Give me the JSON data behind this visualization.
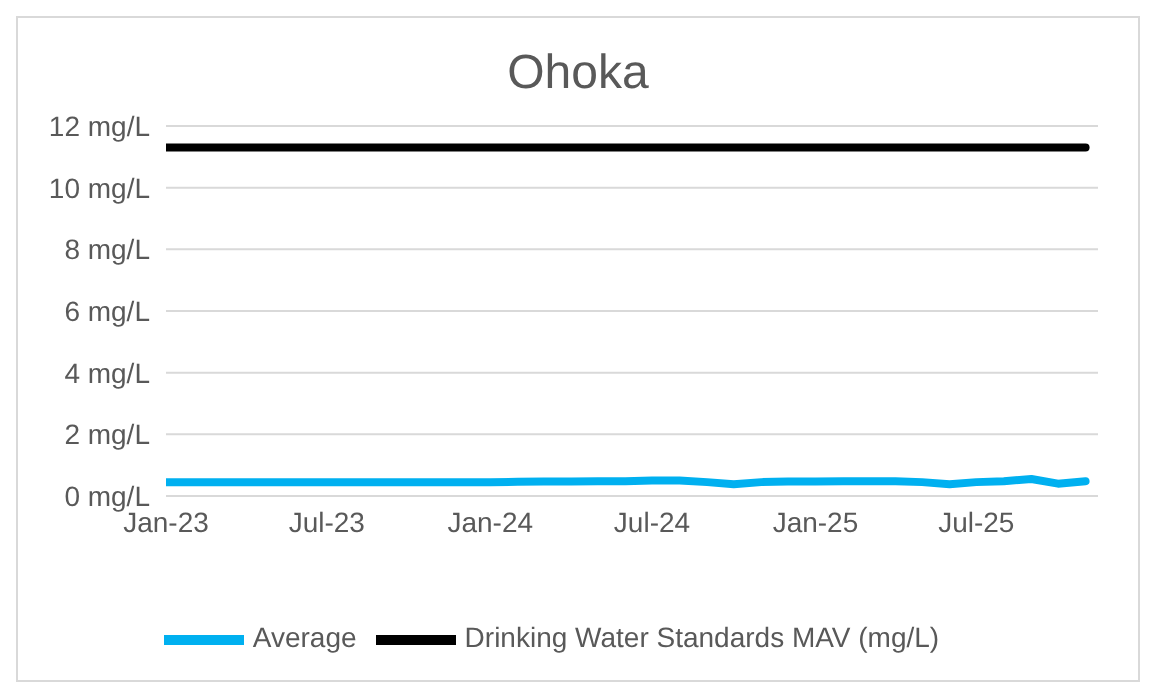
{
  "chart_data": {
    "type": "line",
    "title": "Ohoka",
    "x": [
      "2023-01",
      "2023-02",
      "2023-03",
      "2023-04",
      "2023-05",
      "2023-06",
      "2023-07",
      "2023-08",
      "2023-09",
      "2023-10",
      "2023-11",
      "2023-12",
      "2024-01",
      "2024-02",
      "2024-03",
      "2024-04",
      "2024-05",
      "2024-06",
      "2024-07",
      "2024-08",
      "2024-09",
      "2024-10",
      "2024-11",
      "2024-12",
      "2025-01",
      "2025-02",
      "2025-03",
      "2025-04",
      "2025-05",
      "2025-06",
      "2025-07",
      "2025-08",
      "2025-09",
      "2025-10",
      "2025-11"
    ],
    "series": [
      {
        "name": "Drinking Water Standards MAV (mg/L)",
        "color": "#000000",
        "values": [
          11.3,
          11.3,
          11.3,
          11.3,
          11.3,
          11.3,
          11.3,
          11.3,
          11.3,
          11.3,
          11.3,
          11.3,
          11.3,
          11.3,
          11.3,
          11.3,
          11.3,
          11.3,
          11.3,
          11.3,
          11.3,
          11.3,
          11.3,
          11.3,
          11.3,
          11.3,
          11.3,
          11.3,
          11.3,
          11.3,
          11.3,
          11.3,
          11.3,
          11.3,
          11.3
        ]
      },
      {
        "name": "Average",
        "color": "#00b0f0",
        "values": [
          0.45,
          0.45,
          0.45,
          0.45,
          0.45,
          0.45,
          0.45,
          0.45,
          0.45,
          0.45,
          0.45,
          0.45,
          0.45,
          0.46,
          0.47,
          0.47,
          0.48,
          0.48,
          0.5,
          0.5,
          0.45,
          0.38,
          0.45,
          0.47,
          0.47,
          0.48,
          0.48,
          0.48,
          0.45,
          0.38,
          0.45,
          0.48,
          0.55,
          0.4,
          0.48
        ]
      }
    ],
    "xlim": [
      "2023-01-01",
      "2025-11-15"
    ],
    "xticks": [
      {
        "value": "2023-01",
        "label": "Jan-23"
      },
      {
        "value": "2023-07",
        "label": "Jul-23"
      },
      {
        "value": "2024-01",
        "label": "Jan-24"
      },
      {
        "value": "2024-07",
        "label": "Jul-24"
      },
      {
        "value": "2025-01",
        "label": "Jan-25"
      },
      {
        "value": "2025-07",
        "label": "Jul-25"
      }
    ],
    "ylim": [
      0,
      12
    ],
    "yticks": [
      {
        "value": 0,
        "label": "0 mg/L"
      },
      {
        "value": 2,
        "label": "2 mg/L"
      },
      {
        "value": 4,
        "label": "4 mg/L"
      },
      {
        "value": 6,
        "label": "6 mg/L"
      },
      {
        "value": 8,
        "label": "8 mg/L"
      },
      {
        "value": 10,
        "label": "10 mg/L"
      },
      {
        "value": 12,
        "label": "12 mg/L"
      }
    ],
    "grid": "y",
    "legend": "bottom",
    "marker": "none",
    "line_style": "solid"
  }
}
